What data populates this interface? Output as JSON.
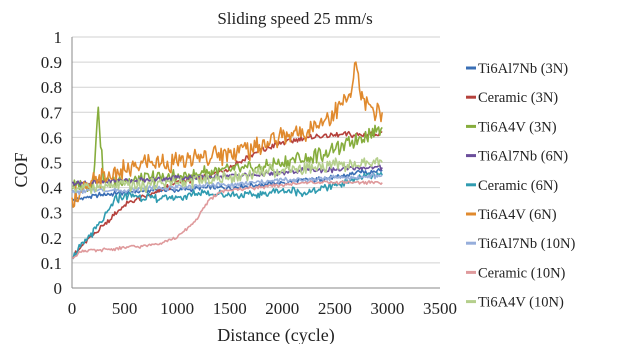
{
  "chart_data": {
    "type": "line",
    "title": "Sliding speed 25 mm/s",
    "xlabel": "Distance (cycle)",
    "ylabel": "COF",
    "xlim": [
      0,
      3500
    ],
    "ylim": [
      0,
      1
    ],
    "x_ticks": [
      0,
      500,
      1000,
      1500,
      2000,
      2500,
      3000,
      3500
    ],
    "y_ticks": [
      0,
      0.1,
      0.2,
      0.3,
      0.4,
      0.5,
      0.6,
      0.7,
      0.8,
      0.9,
      1
    ],
    "y_tick_labels": [
      "0",
      "0.1",
      "0.2",
      "0.3",
      "0.4",
      "0.5",
      "0.6",
      "0.7",
      "0.8",
      "0.9",
      "1"
    ],
    "grid": "horizontal",
    "legend_position": "right",
    "series": [
      {
        "name": "Ti6Al7Nb (3N)",
        "color": "#3a6fb5",
        "x": [
          0,
          250,
          500,
          750,
          1000,
          1250,
          1500,
          1750,
          2000,
          2250,
          2500,
          2750,
          2950
        ],
        "y": [
          0.35,
          0.37,
          0.38,
          0.39,
          0.39,
          0.4,
          0.4,
          0.41,
          0.42,
          0.43,
          0.44,
          0.46,
          0.47
        ]
      },
      {
        "name": "Ceramic (3N)",
        "color": "#b5413c",
        "x": [
          0,
          100,
          200,
          300,
          400,
          500,
          600,
          800,
          1000,
          1250,
          1500,
          1750,
          2000,
          2250,
          2500,
          2750,
          2950
        ],
        "y": [
          0.12,
          0.17,
          0.21,
          0.25,
          0.29,
          0.33,
          0.35,
          0.38,
          0.42,
          0.44,
          0.48,
          0.54,
          0.58,
          0.6,
          0.61,
          0.61,
          0.62
        ]
      },
      {
        "name": "Ti6A4V (3N)",
        "color": "#86ad3d",
        "x": [
          0,
          200,
          250,
          300,
          500,
          750,
          1000,
          1250,
          1500,
          1750,
          2000,
          2250,
          2500,
          2750,
          2950
        ],
        "y": [
          0.4,
          0.41,
          0.72,
          0.42,
          0.43,
          0.44,
          0.44,
          0.46,
          0.47,
          0.48,
          0.5,
          0.52,
          0.55,
          0.6,
          0.64
        ]
      },
      {
        "name": "Ti6Al7Nb (6N)",
        "color": "#6b4e9b",
        "x": [
          0,
          250,
          500,
          750,
          1000,
          1250,
          1500,
          1750,
          2000,
          2250,
          2500,
          2750,
          2950
        ],
        "y": [
          0.42,
          0.42,
          0.43,
          0.43,
          0.44,
          0.44,
          0.45,
          0.45,
          0.46,
          0.47,
          0.47,
          0.48,
          0.48
        ]
      },
      {
        "name": "Ceramic (6N)",
        "color": "#2f9bb0",
        "x": [
          0,
          150,
          300,
          400,
          500,
          750,
          1000,
          1250,
          1500,
          1750,
          2000,
          2250,
          2500,
          2750,
          2950
        ],
        "y": [
          0.12,
          0.2,
          0.27,
          0.35,
          0.37,
          0.36,
          0.36,
          0.38,
          0.37,
          0.37,
          0.39,
          0.38,
          0.41,
          0.44,
          0.45
        ]
      },
      {
        "name": "Ti6A4V (6N)",
        "color": "#e08a2e",
        "x": [
          0,
          250,
          500,
          750,
          1000,
          1250,
          1500,
          1750,
          2000,
          2250,
          2500,
          2650,
          2700,
          2750,
          2850,
          2950
        ],
        "y": [
          0.36,
          0.43,
          0.47,
          0.5,
          0.5,
          0.52,
          0.54,
          0.56,
          0.6,
          0.63,
          0.7,
          0.76,
          0.9,
          0.75,
          0.72,
          0.7
        ]
      },
      {
        "name": "Ti6Al7Nb (10N)",
        "color": "#96aedb",
        "x": [
          0,
          250,
          500,
          750,
          1000,
          1250,
          1500,
          1750,
          2000,
          2250,
          2500,
          2750,
          2950
        ],
        "y": [
          0.38,
          0.39,
          0.39,
          0.4,
          0.4,
          0.41,
          0.41,
          0.42,
          0.43,
          0.43,
          0.44,
          0.44,
          0.45
        ]
      },
      {
        "name": "Ceramic (10N)",
        "color": "#df9a9c",
        "x": [
          0,
          100,
          250,
          500,
          750,
          1000,
          1100,
          1200,
          1300,
          1400,
          1500,
          1750,
          2000,
          2250,
          2500,
          2750,
          2950
        ],
        "y": [
          0.12,
          0.15,
          0.15,
          0.16,
          0.17,
          0.2,
          0.24,
          0.28,
          0.35,
          0.38,
          0.39,
          0.4,
          0.41,
          0.42,
          0.42,
          0.42,
          0.42
        ]
      },
      {
        "name": "Ti6A4V (10N)",
        "color": "#b5cf8c",
        "x": [
          0,
          250,
          500,
          750,
          1000,
          1250,
          1500,
          1750,
          2000,
          2250,
          2500,
          2750,
          2950
        ],
        "y": [
          0.4,
          0.4,
          0.41,
          0.41,
          0.42,
          0.43,
          0.44,
          0.46,
          0.47,
          0.48,
          0.49,
          0.49,
          0.5
        ]
      }
    ]
  }
}
